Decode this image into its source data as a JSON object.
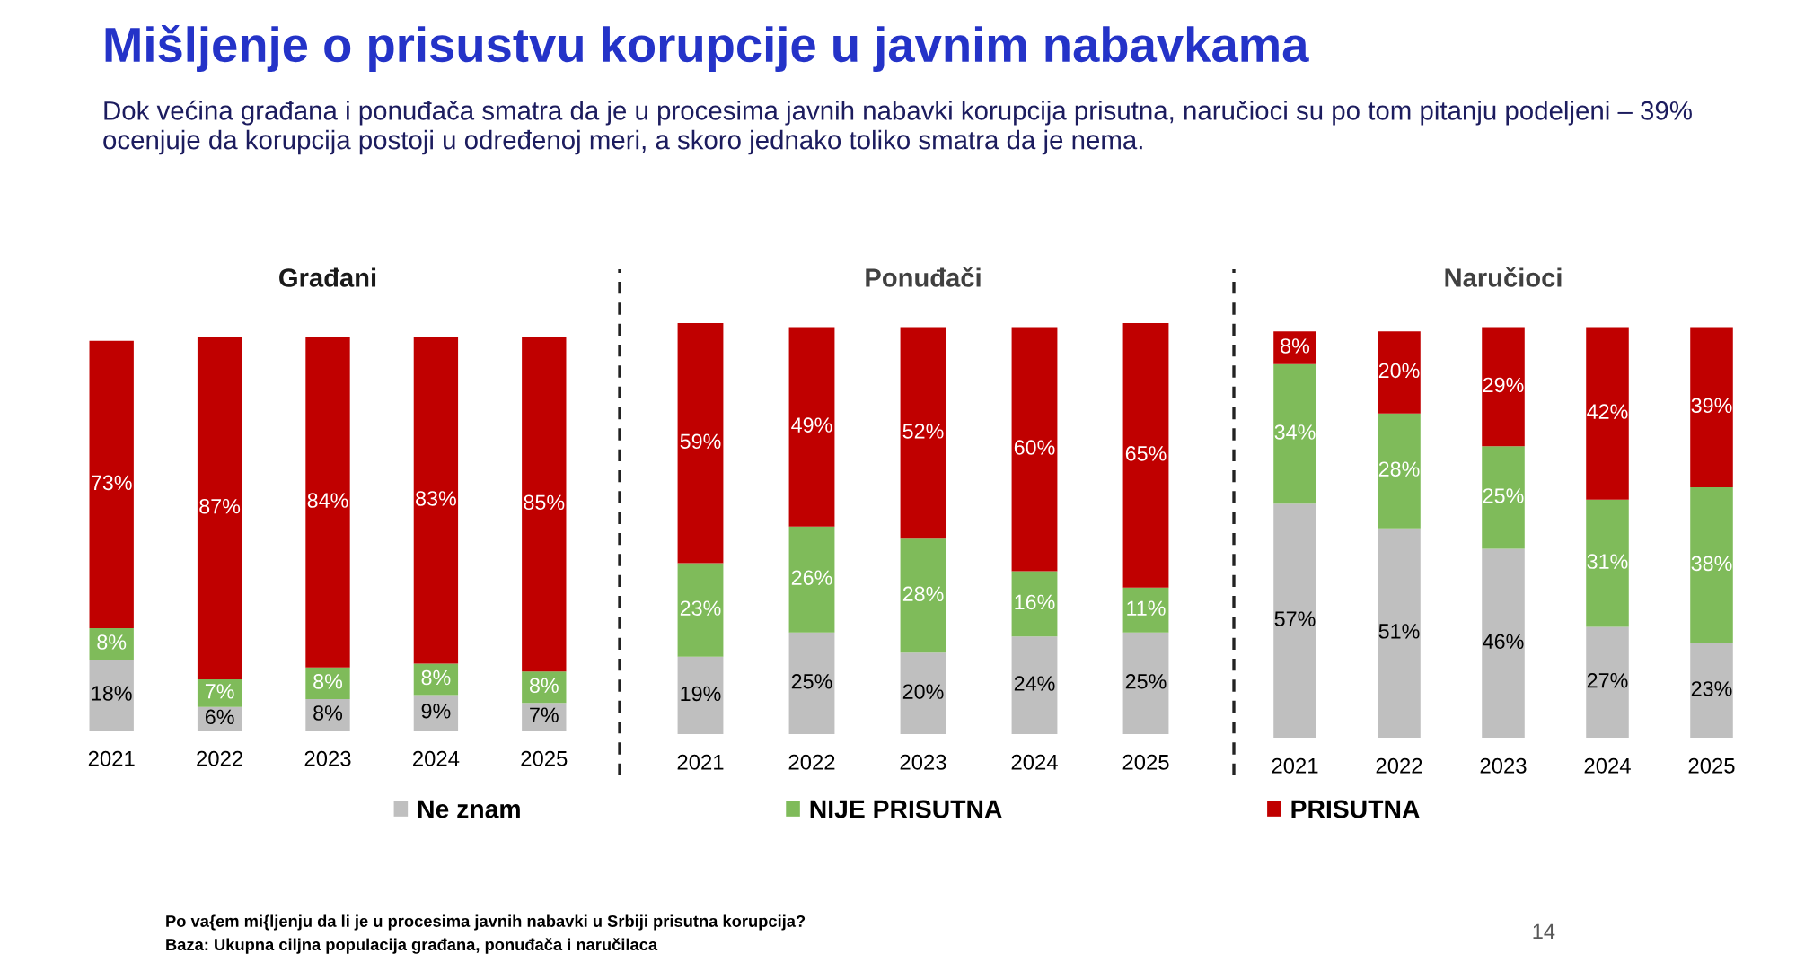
{
  "chart_data": [
    {
      "type": "other",
      "title": "Mišljenje o prisustvu korupcije u javnim nabavkama",
      "subtitle": "Dok većina građana i ponuđača smatra da je u procesima javnih nabavki korupcija prisutna, naručioci su po tom pitanju podeljeni – 39%\nocenjuje da korupcija postoji u određenoj meri, a skoro jednako toliko smatra da je nema.",
      "annotations": [
        "Po va{em mi{ljenju da li je u procesima javnih nabavki u Srbiji prisutna korupcija?",
        "Baza: Ukupna ciljna populacija građana, ponuđača i naručilaca",
        "14"
      ]
    },
    {
      "type": "bar",
      "title": "Građani",
      "categories": [
        "2021",
        "2022",
        "2023",
        "2024",
        "2025"
      ],
      "stacked": true,
      "ylim": [
        0,
        101
      ],
      "tick_labels": "x",
      "legend": "bottom",
      "series": [
        {
          "name": "Ne znam",
          "color": "#bfbfbf",
          "values": [
            18,
            6,
            8,
            9,
            7
          ],
          "value_labels": [
            "18%",
            "6%",
            "8%",
            "9%",
            "7%"
          ]
        },
        {
          "name": "NIJE PRISUTNA",
          "color": "#7fbb5a",
          "values": [
            8,
            7,
            8,
            8,
            8
          ],
          "value_labels": [
            "8%",
            "7%",
            "8%",
            "8%",
            "8%"
          ]
        },
        {
          "name": "PRISUTNA",
          "color": "#c00000",
          "values": [
            73,
            87,
            84,
            83,
            85
          ],
          "value_labels": [
            "73%",
            "87%",
            "84%",
            "83%",
            "85%"
          ]
        }
      ]
    },
    {
      "type": "bar",
      "title": "Ponuđači",
      "categories": [
        "2021",
        "2022",
        "2023",
        "2024",
        "2025"
      ],
      "stacked": true,
      "ylim": [
        0,
        101
      ],
      "tick_labels": "x",
      "legend": "bottom",
      "series": [
        {
          "name": "Ne znam",
          "color": "#bfbfbf",
          "values": [
            19,
            25,
            20,
            24,
            25
          ],
          "value_labels": [
            "19%",
            "25%",
            "20%",
            "24%",
            "25%"
          ]
        },
        {
          "name": "NIJE PRISUTNA",
          "color": "#7fbb5a",
          "values": [
            23,
            26,
            28,
            16,
            11
          ],
          "value_labels": [
            "23%",
            "26%",
            "28%",
            "16%",
            "11%"
          ]
        },
        {
          "name": "PRISUTNA",
          "color": "#c00000",
          "values": [
            59,
            49,
            52,
            60,
            65
          ],
          "value_labels": [
            "59%",
            "49%",
            "52%",
            "60%",
            "65%"
          ]
        }
      ]
    },
    {
      "type": "bar",
      "title": "Naručioci",
      "categories": [
        "2021",
        "2022",
        "2023",
        "2024",
        "2025"
      ],
      "stacked": true,
      "ylim": [
        0,
        101
      ],
      "tick_labels": "x",
      "legend": "bottom",
      "series": [
        {
          "name": "Ne znam",
          "color": "#bfbfbf",
          "values": [
            57,
            51,
            46,
            27,
            23
          ],
          "value_labels": [
            "57%",
            "51%",
            "46%",
            "27%",
            "23%"
          ]
        },
        {
          "name": "NIJE PRISUTNA",
          "color": "#7fbb5a",
          "values": [
            34,
            28,
            25,
            31,
            38
          ],
          "value_labels": [
            "34%",
            "28%",
            "25%",
            "31%",
            "38%"
          ]
        },
        {
          "name": "PRISUTNA",
          "color": "#c00000",
          "values": [
            8,
            20,
            29,
            42,
            39
          ],
          "value_labels": [
            "8%",
            "20%",
            "29%",
            "42%",
            "39%"
          ]
        }
      ]
    }
  ]
}
